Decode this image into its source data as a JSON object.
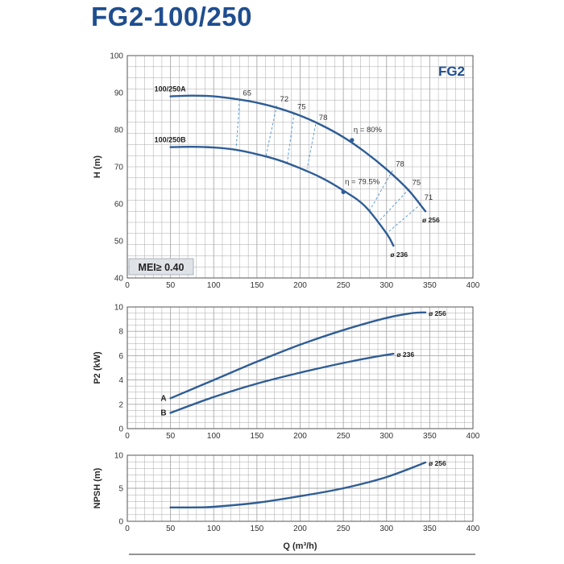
{
  "title": "FG2-100/250",
  "chart_data": [
    {
      "type": "line",
      "id": "head",
      "ylabel": "H (m)",
      "xlim": [
        0,
        400
      ],
      "ylim": [
        40,
        100
      ],
      "xticks": [
        "0",
        "50",
        "100",
        "150",
        "200",
        "250",
        "300",
        "350",
        "400"
      ],
      "yticks": [
        "40",
        "50",
        "60",
        "70",
        "80",
        "90",
        "100"
      ],
      "badge": "FG2",
      "mei_label": "MEI≥ 0.40",
      "series": [
        {
          "name": "100/250A",
          "diameter_label": "ø 256",
          "x": [
            50,
            75,
            100,
            125,
            150,
            175,
            200,
            225,
            250,
            275,
            300,
            325,
            345
          ],
          "y": [
            89,
            89.2,
            89,
            88.3,
            87.3,
            85.8,
            83.8,
            81.2,
            78,
            74,
            69.3,
            63.8,
            58
          ]
        },
        {
          "name": "100/250B",
          "diameter_label": "ø 236",
          "x": [
            50,
            75,
            100,
            125,
            150,
            175,
            200,
            225,
            250,
            275,
            300,
            308
          ],
          "y": [
            75.3,
            75.4,
            75.2,
            74.6,
            73.4,
            71.8,
            69.6,
            67,
            63.6,
            59.4,
            52,
            48.7
          ]
        }
      ],
      "efficiency": [
        {
          "label": "65",
          "a": [
            130,
            88.2
          ],
          "b": [
            126,
            75
          ]
        },
        {
          "label": "72",
          "a": [
            173,
            86.5
          ],
          "b": [
            160,
            72.5
          ]
        },
        {
          "label": "75",
          "a": [
            193,
            84.5
          ],
          "b": [
            185,
            71
          ]
        },
        {
          "label": "78",
          "a": [
            218,
            81.5
          ],
          "b": [
            208,
            69.5
          ]
        },
        {
          "label": "78",
          "a": [
            307,
            69
          ],
          "b": [
            280,
            58
          ]
        },
        {
          "label": "75",
          "a": [
            326,
            64
          ],
          "b": [
            290,
            55
          ]
        },
        {
          "label": "71",
          "a": [
            340,
            60
          ],
          "b": [
            300,
            52
          ]
        }
      ],
      "bep": [
        {
          "label": "η = 80%",
          "x": 260,
          "y": 77.2
        },
        {
          "label": "η = 79.5%",
          "x": 250,
          "y": 63.2
        }
      ]
    },
    {
      "type": "line",
      "id": "power",
      "ylabel": "P2 (kW)",
      "xlim": [
        0,
        400
      ],
      "ylim": [
        0,
        10
      ],
      "xticks": [
        "0",
        "50",
        "100",
        "150",
        "200",
        "250",
        "300",
        "350",
        "400"
      ],
      "yticks": [
        "0",
        "2",
        "4",
        "6",
        "8",
        "10"
      ],
      "series": [
        {
          "name": "A",
          "diameter_label": "ø 256",
          "x": [
            50,
            100,
            150,
            200,
            250,
            300,
            330,
            345
          ],
          "y": [
            2.5,
            4.0,
            5.5,
            6.9,
            8.1,
            9.1,
            9.5,
            9.55
          ]
        },
        {
          "name": "B",
          "diameter_label": "ø 236",
          "x": [
            50,
            100,
            150,
            200,
            250,
            290,
            308
          ],
          "y": [
            1.3,
            2.6,
            3.7,
            4.6,
            5.4,
            5.95,
            6.15
          ]
        }
      ]
    },
    {
      "type": "line",
      "id": "npsh",
      "ylabel": "NPSH (m)",
      "xlabel": "Q (m³/h)",
      "xlim": [
        0,
        400
      ],
      "ylim": [
        0,
        10
      ],
      "xticks": [
        "0",
        "50",
        "100",
        "150",
        "200",
        "250",
        "300",
        "350",
        "400"
      ],
      "yticks": [
        "0",
        "5",
        "10"
      ],
      "series": [
        {
          "name": "",
          "diameter_label": "ø 256",
          "x": [
            50,
            75,
            100,
            150,
            200,
            250,
            300,
            345
          ],
          "y": [
            2.1,
            2.1,
            2.2,
            2.8,
            3.8,
            5.0,
            6.7,
            8.9
          ]
        }
      ]
    }
  ],
  "colors": {
    "curve": "#2f5d95",
    "grid": "#a9a9a9",
    "grid_bg": "#ffffff",
    "axis_text": "#333333",
    "title": "#1f4e8f",
    "efficiency": "#5b9bd5",
    "mei_bg": "#dfe3e8"
  }
}
